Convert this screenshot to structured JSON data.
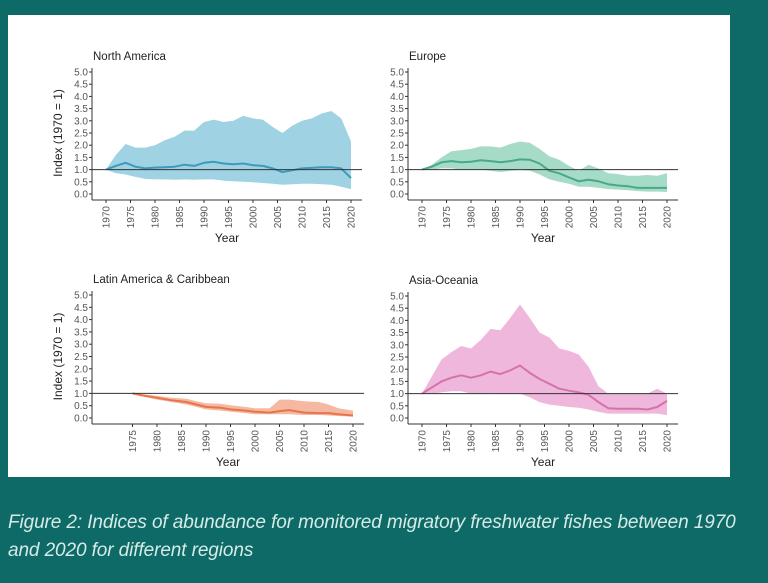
{
  "caption": "Figure 2: Indices of abundance for monitored migratory freshwater fishes between 1970 and 2020 for different regions",
  "chart_data": [
    {
      "type": "area",
      "title": "North America",
      "xlabel": "Year",
      "ylabel": "Index (1970 = 1)",
      "ylim": [
        0,
        5
      ],
      "yticks": [
        "0.0",
        "0.5",
        "1.0",
        "1.5",
        "2.0",
        "2.5",
        "3.0",
        "3.5",
        "4.0",
        "4.5",
        "5.0"
      ],
      "xticks": [
        "1970",
        "1975",
        "1980",
        "1985",
        "1990",
        "1995",
        "2000",
        "2005",
        "2010",
        "2015",
        "2020"
      ],
      "reference_line": 1.0,
      "fill_color": "#9fd2e2",
      "line_color": "#3b9bbb",
      "x": [
        1970,
        1972,
        1974,
        1976,
        1978,
        1980,
        1982,
        1984,
        1986,
        1988,
        1990,
        1992,
        1994,
        1996,
        1998,
        2000,
        2002,
        2004,
        2006,
        2008,
        2010,
        2012,
        2014,
        2016,
        2018,
        2020
      ],
      "upper": [
        1,
        1.6,
        2.05,
        1.9,
        1.9,
        2.0,
        2.2,
        2.35,
        2.6,
        2.6,
        2.95,
        3.05,
        2.95,
        3.0,
        3.2,
        3.1,
        3.05,
        2.75,
        2.5,
        2.8,
        3.0,
        3.1,
        3.3,
        3.4,
        3.1,
        2.15
      ],
      "mean": [
        1,
        1.15,
        1.28,
        1.12,
        1.05,
        1.08,
        1.1,
        1.12,
        1.2,
        1.15,
        1.28,
        1.32,
        1.25,
        1.22,
        1.25,
        1.18,
        1.15,
        1.05,
        0.9,
        0.97,
        1.05,
        1.07,
        1.1,
        1.1,
        1.05,
        0.65
      ],
      "lower": [
        1,
        0.85,
        0.8,
        0.7,
        0.62,
        0.6,
        0.6,
        0.58,
        0.6,
        0.58,
        0.6,
        0.6,
        0.55,
        0.52,
        0.5,
        0.48,
        0.45,
        0.42,
        0.38,
        0.4,
        0.42,
        0.42,
        0.4,
        0.38,
        0.3,
        0.2
      ]
    },
    {
      "type": "area",
      "title": "Europe",
      "xlabel": "Year",
      "ylabel": "",
      "ylim": [
        0,
        5
      ],
      "yticks": [
        "0.0",
        "0.5",
        "1.0",
        "1.5",
        "2.0",
        "2.5",
        "3.0",
        "3.5",
        "4.0",
        "4.5",
        "5.0"
      ],
      "xticks": [
        "1970",
        "1975",
        "1980",
        "1985",
        "1990",
        "1995",
        "2000",
        "2005",
        "2010",
        "2015",
        "2020"
      ],
      "reference_line": 1.0,
      "fill_color": "#a6dcc7",
      "line_color": "#49a889",
      "x": [
        1970,
        1972,
        1974,
        1976,
        1978,
        1980,
        1982,
        1984,
        1986,
        1988,
        1990,
        1992,
        1994,
        1996,
        1998,
        2000,
        2002,
        2004,
        2006,
        2008,
        2010,
        2012,
        2014,
        2016,
        2018,
        2020
      ],
      "upper": [
        1,
        1.2,
        1.5,
        1.75,
        1.8,
        1.85,
        1.95,
        1.95,
        1.9,
        2.05,
        2.15,
        2.1,
        1.85,
        1.55,
        1.4,
        1.15,
        0.95,
        1.2,
        1.05,
        0.85,
        0.82,
        0.75,
        0.75,
        0.78,
        0.75,
        0.85
      ],
      "mean": [
        1,
        1.12,
        1.3,
        1.35,
        1.3,
        1.32,
        1.38,
        1.35,
        1.3,
        1.35,
        1.42,
        1.4,
        1.25,
        0.95,
        0.85,
        0.68,
        0.52,
        0.58,
        0.52,
        0.4,
        0.35,
        0.32,
        0.25,
        0.25,
        0.25,
        0.25
      ],
      "lower": [
        1,
        1.0,
        1.05,
        1.05,
        1.0,
        1.0,
        1.0,
        0.95,
        0.9,
        0.95,
        0.98,
        0.95,
        0.8,
        0.6,
        0.5,
        0.42,
        0.3,
        0.3,
        0.25,
        0.2,
        0.18,
        0.15,
        0.12,
        0.1,
        0.1,
        0.08
      ]
    },
    {
      "type": "area",
      "title": "Latin America & Caribbean",
      "xlabel": "Year",
      "ylabel": "Index (1970 = 1)",
      "ylim": [
        0,
        5
      ],
      "yticks": [
        "0.0",
        "0.5",
        "1.0",
        "1.5",
        "2.0",
        "2.5",
        "3.0",
        "3.5",
        "4.0",
        "4.5",
        "5.0"
      ],
      "xticks": [
        "1975",
        "1980",
        "1985",
        "1990",
        "1995",
        "2000",
        "2005",
        "2010",
        "2015",
        "2020"
      ],
      "reference_line": 1.0,
      "fill_color": "#f5b8a0",
      "line_color": "#e8744d",
      "x": [
        1975,
        1977,
        1980,
        1983,
        1986,
        1988,
        1990,
        1993,
        1995,
        1998,
        2000,
        2003,
        2005,
        2007,
        2010,
        2013,
        2015,
        2017,
        2020
      ],
      "upper": [
        1,
        0.97,
        0.9,
        0.82,
        0.78,
        0.68,
        0.6,
        0.58,
        0.52,
        0.45,
        0.4,
        0.4,
        0.75,
        0.75,
        0.68,
        0.65,
        0.55,
        0.4,
        0.3
      ],
      "mean": [
        1,
        0.92,
        0.82,
        0.72,
        0.65,
        0.55,
        0.45,
        0.42,
        0.35,
        0.3,
        0.25,
        0.22,
        0.28,
        0.32,
        0.22,
        0.2,
        0.2,
        0.15,
        0.1
      ],
      "lower": [
        1,
        0.88,
        0.75,
        0.65,
        0.55,
        0.45,
        0.35,
        0.3,
        0.25,
        0.2,
        0.15,
        0.15,
        0.15,
        0.15,
        0.12,
        0.12,
        0.1,
        0.08,
        0.05
      ]
    },
    {
      "type": "area",
      "title": "Asia-Oceania",
      "xlabel": "Year",
      "ylabel": "",
      "ylim": [
        0,
        5
      ],
      "yticks": [
        "0.0",
        "0.5",
        "1.0",
        "1.5",
        "2.0",
        "2.5",
        "3.0",
        "3.5",
        "4.0",
        "4.5",
        "5.0"
      ],
      "xticks": [
        "1970",
        "1975",
        "1980",
        "1985",
        "1990",
        "1995",
        "2000",
        "2005",
        "2010",
        "2015",
        "2020"
      ],
      "reference_line": 1.0,
      "fill_color": "#eeb7db",
      "line_color": "#d672ab",
      "x": [
        1970,
        1972,
        1974,
        1976,
        1978,
        1980,
        1982,
        1984,
        1986,
        1988,
        1990,
        1992,
        1994,
        1996,
        1998,
        2000,
        2002,
        2004,
        2006,
        2008,
        2010,
        2012,
        2014,
        2016,
        2018,
        2020
      ],
      "upper": [
        1,
        1.7,
        2.4,
        2.7,
        2.95,
        2.85,
        3.2,
        3.65,
        3.6,
        4.1,
        4.65,
        4.1,
        3.5,
        3.3,
        2.85,
        2.75,
        2.6,
        2.1,
        1.3,
        1.0,
        1.0,
        1.0,
        1.0,
        1.0,
        1.2,
        1.0
      ],
      "mean": [
        1,
        1.25,
        1.5,
        1.65,
        1.75,
        1.65,
        1.75,
        1.9,
        1.8,
        1.95,
        2.15,
        1.85,
        1.6,
        1.4,
        1.2,
        1.12,
        1.05,
        0.95,
        0.65,
        0.4,
        0.38,
        0.38,
        0.38,
        0.35,
        0.45,
        0.7
      ],
      "lower": [
        1,
        1.0,
        1.05,
        1.1,
        1.1,
        1.0,
        1.0,
        1.02,
        1.0,
        1.0,
        1.0,
        0.85,
        0.65,
        0.55,
        0.5,
        0.45,
        0.42,
        0.35,
        0.25,
        0.18,
        0.18,
        0.18,
        0.18,
        0.18,
        0.18,
        0.12
      ]
    }
  ]
}
